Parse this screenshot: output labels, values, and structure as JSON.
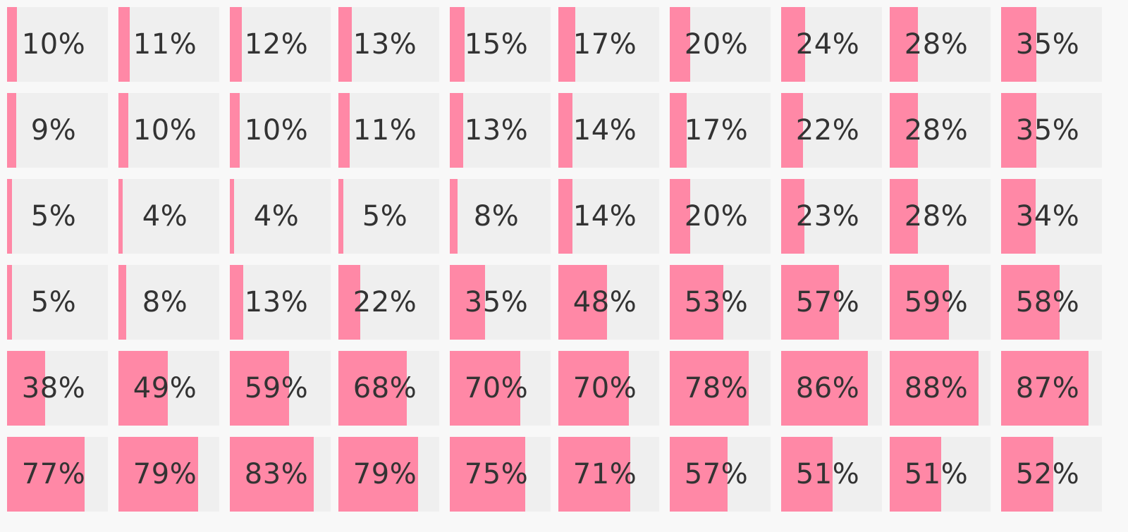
{
  "colors": {
    "page_background": "#f8f8f8",
    "cell_background": "#efefef",
    "bar_fill": "#ff88a6",
    "text": "#333333"
  },
  "rows": [
    [
      "10%",
      "11%",
      "12%",
      "13%",
      "15%",
      "17%",
      "20%",
      "24%",
      "28%",
      "35%"
    ],
    [
      "9%",
      "10%",
      "10%",
      "11%",
      "13%",
      "14%",
      "17%",
      "22%",
      "28%",
      "35%"
    ],
    [
      "5%",
      "4%",
      "4%",
      "5%",
      "8%",
      "14%",
      "20%",
      "23%",
      "28%",
      "34%"
    ],
    [
      "5%",
      "8%",
      "13%",
      "22%",
      "35%",
      "48%",
      "53%",
      "57%",
      "59%",
      "58%"
    ],
    [
      "38%",
      "49%",
      "59%",
      "68%",
      "70%",
      "70%",
      "78%",
      "86%",
      "88%",
      "87%"
    ],
    [
      "77%",
      "79%",
      "83%",
      "79%",
      "75%",
      "71%",
      "57%",
      "51%",
      "51%",
      "52%"
    ]
  ]
}
